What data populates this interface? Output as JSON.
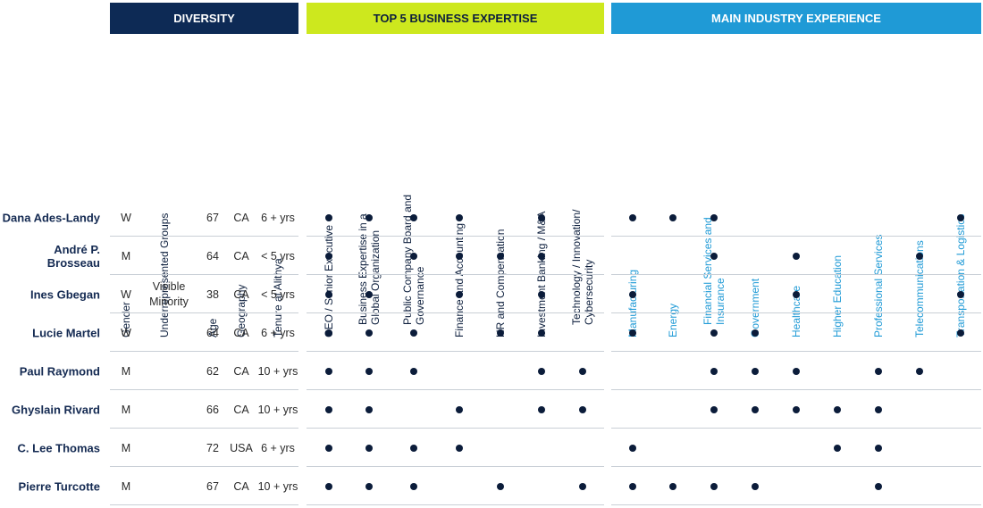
{
  "sections": {
    "diversity": "DIVERSITY",
    "expertise": "TOP 5 BUSINESS EXPERTISE",
    "industry": "MAIN INDUSTRY EXPERIENCE"
  },
  "colors": {
    "diversity_bg": "#0d2a55",
    "expertise_bg": "#cde81e",
    "industry_bg": "#1f9ad6",
    "dot": "#0b1c3a",
    "name": "#142a52"
  },
  "diversity_columns": [
    "Gender",
    "Underrepresented Groups",
    "Age",
    "Geography",
    "Tenure at Alithya"
  ],
  "expertise_columns": [
    [
      "CEO / Senior Executive"
    ],
    [
      "Business Expertise in a",
      "Global Organization"
    ],
    [
      "Public Company Board and",
      "Governance"
    ],
    [
      "Finance and Accounting"
    ],
    [
      "HR and Compensation"
    ],
    [
      "Investment Banking / M&A"
    ],
    [
      "Technology / Innovation/",
      "Cybersecurity"
    ]
  ],
  "industry_columns": [
    [
      "Manufacturing"
    ],
    [
      "Energy"
    ],
    [
      "Financial Services and",
      "Insurance"
    ],
    [
      "Government"
    ],
    [
      "Healthcare"
    ],
    [
      "Higher Education"
    ],
    [
      "Professional Services"
    ],
    [
      "Telecommunications"
    ],
    [
      "Transportation & Logistics"
    ]
  ],
  "directors": [
    {
      "name": "Dana Ades-Landy",
      "gender": "W",
      "underrepresented": [
        "",
        ""
      ],
      "age": "67",
      "geo": "CA",
      "tenure": "6 + yrs",
      "expertise": [
        1,
        1,
        1,
        1,
        0,
        1,
        0
      ],
      "industry": [
        1,
        1,
        1,
        0,
        0,
        0,
        0,
        0,
        1
      ]
    },
    {
      "name": "André P. Brosseau",
      "gender": "M",
      "underrepresented": [
        "",
        ""
      ],
      "age": "64",
      "geo": "CA",
      "tenure": "< 5 yrs",
      "expertise": [
        1,
        0,
        1,
        1,
        1,
        1,
        0
      ],
      "industry": [
        0,
        0,
        1,
        0,
        1,
        0,
        0,
        1,
        0
      ]
    },
    {
      "name": "Ines Gbegan",
      "gender": "W",
      "underrepresented": [
        "Visible",
        "Minority"
      ],
      "age": "38",
      "geo": "CA",
      "tenure": "< 5 yrs",
      "expertise": [
        1,
        1,
        0,
        1,
        0,
        1,
        0
      ],
      "industry": [
        1,
        0,
        0,
        0,
        1,
        0,
        0,
        0,
        1
      ]
    },
    {
      "name": "Lucie Martel",
      "gender": "W",
      "underrepresented": [
        "",
        ""
      ],
      "age": "64",
      "geo": "CA",
      "tenure": "6 + yrs",
      "expertise": [
        1,
        1,
        1,
        0,
        1,
        1,
        0
      ],
      "industry": [
        1,
        0,
        1,
        1,
        0,
        0,
        0,
        0,
        1
      ]
    },
    {
      "name": "Paul Raymond",
      "gender": "M",
      "underrepresented": [
        "",
        ""
      ],
      "age": "62",
      "geo": "CA",
      "tenure": "10 + yrs",
      "expertise": [
        1,
        1,
        1,
        0,
        0,
        1,
        1
      ],
      "industry": [
        0,
        0,
        1,
        1,
        1,
        0,
        1,
        1,
        0
      ]
    },
    {
      "name": "Ghyslain Rivard",
      "gender": "M",
      "underrepresented": [
        "",
        ""
      ],
      "age": "66",
      "geo": "CA",
      "tenure": "10 + yrs",
      "expertise": [
        1,
        1,
        0,
        1,
        0,
        1,
        1
      ],
      "industry": [
        0,
        0,
        1,
        1,
        1,
        1,
        1,
        0,
        0
      ]
    },
    {
      "name": "C. Lee Thomas",
      "gender": "M",
      "underrepresented": [
        "",
        ""
      ],
      "age": "72",
      "geo": "USA",
      "tenure": "6 + yrs",
      "expertise": [
        1,
        1,
        1,
        1,
        0,
        0,
        0
      ],
      "industry": [
        1,
        0,
        0,
        0,
        0,
        1,
        1,
        0,
        0
      ]
    },
    {
      "name": "Pierre Turcotte",
      "gender": "M",
      "underrepresented": [
        "",
        ""
      ],
      "age": "67",
      "geo": "CA",
      "tenure": "10 + yrs",
      "expertise": [
        1,
        1,
        1,
        0,
        1,
        0,
        1
      ],
      "industry": [
        1,
        1,
        1,
        1,
        0,
        0,
        1,
        0,
        0
      ]
    }
  ]
}
